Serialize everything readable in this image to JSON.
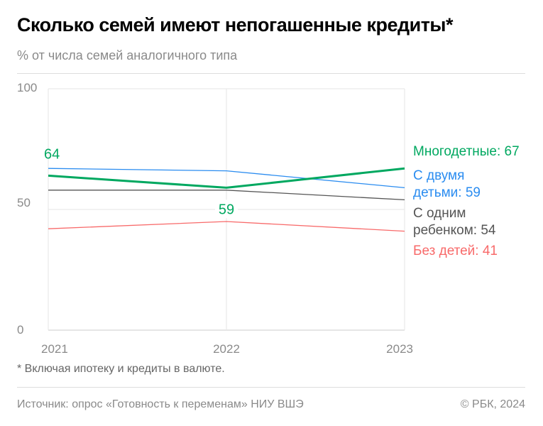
{
  "title": "Сколько семей имеют непогашенные кредиты*",
  "subtitle": "% от числа семей аналогичного типа",
  "footnote": "* Включая ипотеку и кредиты в валюте.",
  "source": "Источник: опрос «Готовность к переменам» НИУ ВШЭ",
  "copyright": "© РБК, 2024",
  "chart_data": {
    "type": "line",
    "x": [
      "2021",
      "2022",
      "2023"
    ],
    "ylim": [
      0,
      100
    ],
    "yticks": [
      "0",
      "50",
      "100"
    ],
    "grid": true,
    "series": [
      {
        "name": "Многодетные",
        "label_lines": [
          "Многодетные: 67"
        ],
        "color": "#00a860",
        "values": [
          64,
          59,
          67
        ],
        "point_labels": [
          "64",
          "59",
          ""
        ]
      },
      {
        "name": "С двумя детьми",
        "label_lines": [
          "С двумя",
          "детьми: 59"
        ],
        "color": "#2a8cf0",
        "values": [
          67,
          66,
          59
        ]
      },
      {
        "name": "С одним ребенком",
        "label_lines": [
          "С одним",
          "ребенком: 54"
        ],
        "color": "#555555",
        "values": [
          58,
          58,
          54
        ]
      },
      {
        "name": "Без детей",
        "label_lines": [
          "Без детей: 41"
        ],
        "color": "#f86a6a",
        "values": [
          42,
          45,
          41
        ]
      }
    ]
  }
}
